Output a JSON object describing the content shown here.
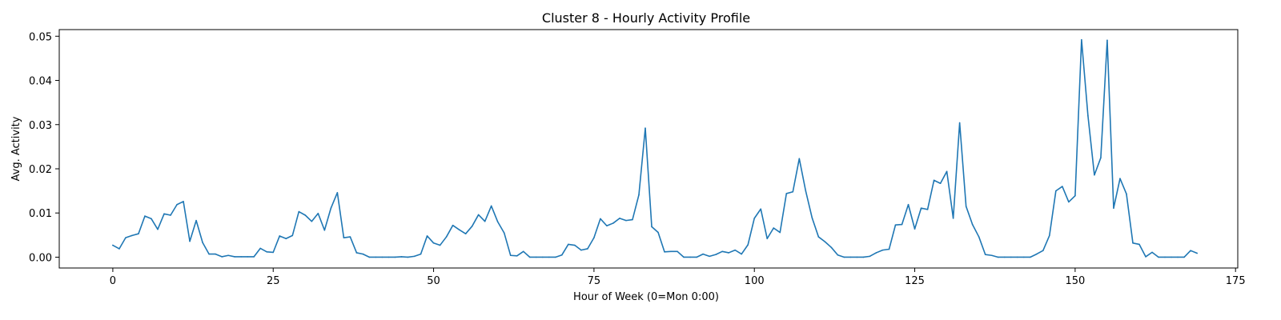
{
  "chart_data": {
    "type": "line",
    "title": "Cluster 8 - Hourly Activity Profile",
    "xlabel": "Hour of Week (0=Mon 0:00)",
    "ylabel": "Avg. Activity",
    "xlim": [
      -8.35,
      175.35
    ],
    "ylim": [
      -0.00245,
      0.0515
    ],
    "xticks": [
      0,
      25,
      50,
      75,
      100,
      125,
      150,
      175
    ],
    "yticks": [
      0.0,
      0.01,
      0.02,
      0.03,
      0.04,
      0.05
    ],
    "ytick_labels": [
      "0.00",
      "0.01",
      "0.02",
      "0.03",
      "0.04",
      "0.05"
    ],
    "grid": false,
    "line_color": "#1f77b4",
    "series": [
      {
        "values": [
          0.0027,
          0.0019,
          0.0044,
          0.0049,
          0.0053,
          0.0093,
          0.0087,
          0.0063,
          0.0098,
          0.0095,
          0.0119,
          0.0126,
          0.0036,
          0.0083,
          0.0033,
          0.0007,
          0.0007,
          0.0001,
          0.0004,
          0.0001,
          0.0001,
          0.0001,
          0.0001,
          0.002,
          0.0012,
          0.0011,
          0.0048,
          0.0042,
          0.0049,
          0.0103,
          0.0095,
          0.0081,
          0.0099,
          0.0061,
          0.0111,
          0.0146,
          0.0044,
          0.0046,
          0.001,
          0.0007,
          0.0,
          0.0,
          0.0,
          0.0,
          0.0,
          0.0001,
          0.0,
          0.0002,
          0.0007,
          0.0048,
          0.0032,
          0.0027,
          0.0046,
          0.0072,
          0.0062,
          0.0053,
          0.007,
          0.0096,
          0.0081,
          0.0116,
          0.008,
          0.0055,
          0.0004,
          0.0003,
          0.0013,
          0.0,
          0.0,
          0.0,
          0.0,
          0.0,
          0.0005,
          0.0029,
          0.0027,
          0.0016,
          0.0019,
          0.0044,
          0.0087,
          0.0071,
          0.0077,
          0.0088,
          0.0083,
          0.0085,
          0.0141,
          0.0292,
          0.0069,
          0.0056,
          0.0012,
          0.0013,
          0.0013,
          0.0,
          0.0,
          0.0,
          0.0007,
          0.0002,
          0.0006,
          0.0013,
          0.001,
          0.0016,
          0.0007,
          0.0028,
          0.0088,
          0.0109,
          0.0042,
          0.0066,
          0.0056,
          0.0144,
          0.0148,
          0.0223,
          0.015,
          0.0089,
          0.0046,
          0.0035,
          0.0022,
          0.0005,
          0.0,
          0.0,
          0.0,
          0.0,
          0.0002,
          0.001,
          0.0016,
          0.0018,
          0.0073,
          0.0074,
          0.0119,
          0.0064,
          0.0111,
          0.0108,
          0.0174,
          0.0167,
          0.0194,
          0.0088,
          0.0304,
          0.0115,
          0.0074,
          0.0046,
          0.0006,
          0.0004,
          0.0,
          0.0,
          0.0,
          0.0,
          0.0,
          0.0,
          0.0007,
          0.0015,
          0.0049,
          0.015,
          0.016,
          0.0125,
          0.0139,
          0.0492,
          0.032,
          0.0186,
          0.0225,
          0.0491,
          0.0111,
          0.0178,
          0.0143,
          0.0032,
          0.0029,
          0.0001,
          0.0011,
          0.0,
          0.0,
          0.0,
          0.0,
          0.0,
          0.0015,
          0.0009
        ]
      }
    ]
  }
}
